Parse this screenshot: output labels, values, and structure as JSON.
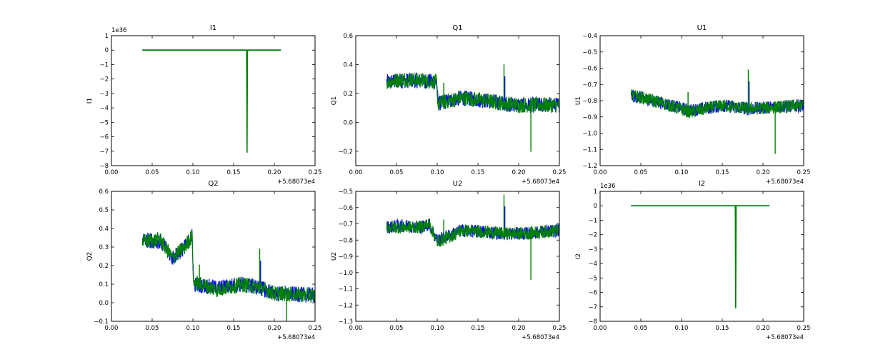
{
  "figure": {
    "background": "#ffffff"
  },
  "colors": {
    "series_a": "#0000ff",
    "series_b": "#008000",
    "axes": "#000000"
  },
  "chart_data": [
    {
      "type": "line",
      "title": "I1",
      "ylabel": "I1",
      "xlim": [
        0.0,
        0.25
      ],
      "ylim": [
        -8,
        1
      ],
      "x_ticks": [
        "0.00",
        "0.05",
        "0.10",
        "0.15",
        "0.20",
        "0.25"
      ],
      "y_ticks": [
        "1",
        "0",
        "−1",
        "−2",
        "−3",
        "−4",
        "−5",
        "−6",
        "−7",
        "−8"
      ],
      "x_offset_label": "+5.68073e4",
      "y_multiplier_label": "1e36",
      "series": [
        {
          "color": "#0000ff",
          "x": [
            0.038,
            0.208
          ],
          "y": [
            0,
            0
          ]
        },
        {
          "color": "#008000",
          "x": [
            0.038,
            0.08,
            0.12,
            0.166,
            0.1665,
            0.167,
            0.19,
            0.208
          ],
          "y": [
            0,
            0,
            0,
            0,
            -7.1,
            0,
            0,
            0
          ]
        }
      ]
    },
    {
      "type": "line",
      "title": "Q1",
      "ylabel": "Q1",
      "xlim": [
        0.0,
        0.25
      ],
      "ylim": [
        -0.3,
        0.6
      ],
      "x_ticks": [
        "0.00",
        "0.05",
        "0.10",
        "0.15",
        "0.20",
        "0.25"
      ],
      "y_ticks": [
        "0.6",
        "0.4",
        "0.2",
        "0.0",
        "−0.2"
      ],
      "x_offset_label": "+5.68073e4",
      "y_multiplier_label": "",
      "series": [
        {
          "color": "#0000ff",
          "x": [
            0.038,
            0.06,
            0.08,
            0.099,
            0.101,
            0.13,
            0.16,
            0.183,
            0.2,
            0.207,
            0.25
          ],
          "y": [
            0.28,
            0.29,
            0.29,
            0.28,
            0.13,
            0.17,
            0.15,
            0.13,
            0.12,
            0.12,
            0.12
          ]
        },
        {
          "color": "#008000",
          "x": [
            0.038,
            0.06,
            0.08,
            0.099,
            0.101,
            0.13,
            0.16,
            0.183,
            0.2,
            0.215,
            0.25
          ],
          "y": [
            0.28,
            0.3,
            0.29,
            0.28,
            0.13,
            0.17,
            0.15,
            0.13,
            0.12,
            0.12,
            0.12
          ]
        }
      ]
    },
    {
      "type": "line",
      "title": "U1",
      "ylabel": "U1",
      "xlim": [
        0.0,
        0.25
      ],
      "ylim": [
        -1.2,
        -0.4
      ],
      "x_ticks": [
        "0.00",
        "0.05",
        "0.10",
        "0.15",
        "0.20",
        "0.25"
      ],
      "y_ticks": [
        "−0.4",
        "−0.5",
        "−0.6",
        "−0.7",
        "−0.8",
        "−0.9",
        "−1.0",
        "−1.1",
        "−1.2"
      ],
      "x_offset_label": "+5.68073e4",
      "y_multiplier_label": "",
      "series": [
        {
          "color": "#0000ff",
          "x": [
            0.038,
            0.05,
            0.08,
            0.11,
            0.15,
            0.184,
            0.207,
            0.25
          ],
          "y": [
            -0.77,
            -0.78,
            -0.82,
            -0.86,
            -0.83,
            -0.85,
            -0.84,
            -0.83
          ]
        },
        {
          "color": "#008000",
          "x": [
            0.038,
            0.05,
            0.08,
            0.11,
            0.15,
            0.184,
            0.215,
            0.25
          ],
          "y": [
            -0.77,
            -0.78,
            -0.82,
            -0.87,
            -0.83,
            -0.85,
            -0.84,
            -0.83
          ]
        }
      ]
    },
    {
      "type": "line",
      "title": "Q2",
      "ylabel": "Q2",
      "xlim": [
        0.0,
        0.25
      ],
      "ylim": [
        -0.1,
        0.6
      ],
      "x_ticks": [
        "0.00",
        "0.05",
        "0.10",
        "0.15",
        "0.20",
        "0.25"
      ],
      "y_ticks": [
        "0.6",
        "0.5",
        "0.4",
        "0.3",
        "0.2",
        "0.1",
        "0.0",
        "−0.1"
      ],
      "x_offset_label": "+5.68073e4",
      "y_multiplier_label": "",
      "series": [
        {
          "color": "#0000ff",
          "x": [
            0.038,
            0.06,
            0.075,
            0.09,
            0.099,
            0.101,
            0.13,
            0.16,
            0.183,
            0.2,
            0.206,
            0.25
          ],
          "y": [
            0.34,
            0.33,
            0.24,
            0.3,
            0.36,
            0.1,
            0.08,
            0.1,
            0.08,
            0.05,
            0.05,
            0.04
          ]
        },
        {
          "color": "#008000",
          "x": [
            0.038,
            0.06,
            0.075,
            0.09,
            0.099,
            0.101,
            0.13,
            0.16,
            0.183,
            0.2,
            0.25
          ],
          "y": [
            0.33,
            0.34,
            0.24,
            0.3,
            0.36,
            0.11,
            0.07,
            0.1,
            0.08,
            0.05,
            0.04
          ]
        }
      ]
    },
    {
      "type": "line",
      "title": "U2",
      "ylabel": "U2",
      "xlim": [
        0.0,
        0.25
      ],
      "ylim": [
        -1.3,
        -0.5
      ],
      "x_ticks": [
        "0.00",
        "0.05",
        "0.10",
        "0.15",
        "0.20",
        "0.25"
      ],
      "y_ticks": [
        "−0.5",
        "−0.6",
        "−0.7",
        "−0.8",
        "−0.9",
        "−1.0",
        "−1.1",
        "−1.2",
        "−1.3"
      ],
      "x_offset_label": "+5.68073e4",
      "y_multiplier_label": "",
      "series": [
        {
          "color": "#0000ff",
          "x": [
            0.038,
            0.06,
            0.08,
            0.09,
            0.1,
            0.115,
            0.13,
            0.16,
            0.183,
            0.207,
            0.25
          ],
          "y": [
            -0.72,
            -0.71,
            -0.72,
            -0.7,
            -0.8,
            -0.77,
            -0.74,
            -0.75,
            -0.76,
            -0.76,
            -0.74
          ]
        },
        {
          "color": "#008000",
          "x": [
            0.038,
            0.06,
            0.08,
            0.09,
            0.1,
            0.115,
            0.13,
            0.16,
            0.183,
            0.207,
            0.25
          ],
          "y": [
            -0.72,
            -0.72,
            -0.72,
            -0.7,
            -0.81,
            -0.78,
            -0.74,
            -0.75,
            -0.76,
            -0.76,
            -0.74
          ]
        }
      ]
    },
    {
      "type": "line",
      "title": "I2",
      "ylabel": "I2",
      "xlim": [
        0.0,
        0.25
      ],
      "ylim": [
        -8,
        1
      ],
      "x_ticks": [
        "0.00",
        "0.05",
        "0.10",
        "0.15",
        "0.20",
        "0.25"
      ],
      "y_ticks": [
        "1",
        "0",
        "−1",
        "−2",
        "−3",
        "−4",
        "−5",
        "−6",
        "−7",
        "−8"
      ],
      "x_offset_label": "+5.68073e4",
      "y_multiplier_label": "1e36",
      "series": [
        {
          "color": "#0000ff",
          "x": [
            0.038,
            0.208
          ],
          "y": [
            0,
            0
          ]
        },
        {
          "color": "#008000",
          "x": [
            0.038,
            0.08,
            0.12,
            0.166,
            0.1665,
            0.167,
            0.19,
            0.208
          ],
          "y": [
            0,
            0,
            0,
            0,
            -7.1,
            0,
            0,
            0
          ]
        }
      ]
    }
  ]
}
